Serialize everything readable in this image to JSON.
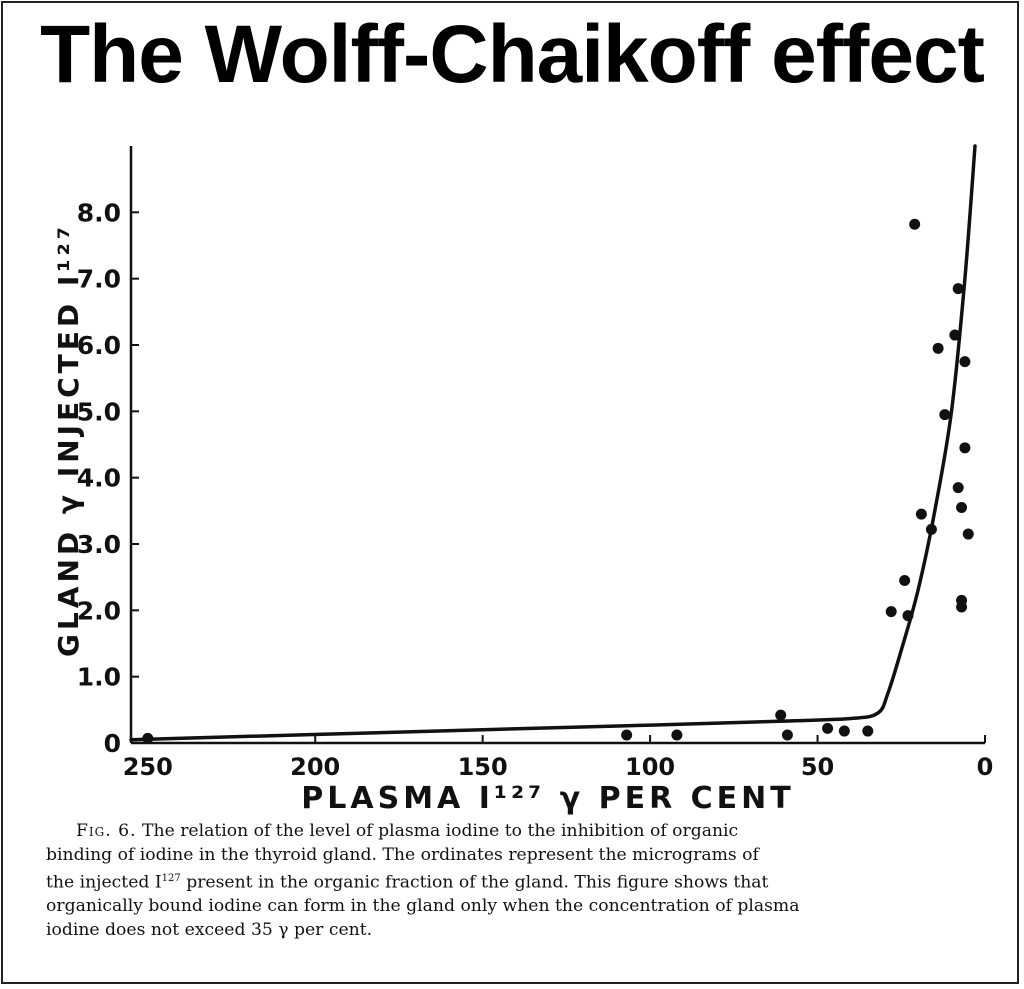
{
  "title": "The Wolff-Chaikoff effect",
  "chart_data": {
    "type": "scatter",
    "xlabel": "PLASMA I¹²⁷ γ PER CENT",
    "ylabel": "GLAND γ INJECTED I¹²⁷",
    "xlim": [
      255,
      0
    ],
    "x_reversed": true,
    "ylim": [
      0,
      9.0
    ],
    "x_ticks": [
      250,
      200,
      150,
      100,
      50,
      0
    ],
    "x_tick_labels": [
      "250",
      "200",
      "150",
      "100",
      "50",
      "0"
    ],
    "y_ticks": [
      0,
      1,
      2,
      3,
      4,
      5,
      6,
      7,
      8
    ],
    "y_tick_labels": [
      "0",
      "1.0",
      "2.0",
      "3.0",
      "4.0",
      "5.0",
      "6.0",
      "7.0",
      "8.0"
    ],
    "points": [
      {
        "x": 250,
        "y": 0.07
      },
      {
        "x": 107,
        "y": 0.12
      },
      {
        "x": 92,
        "y": 0.12
      },
      {
        "x": 61,
        "y": 0.42
      },
      {
        "x": 59,
        "y": 0.12
      },
      {
        "x": 47,
        "y": 0.22
      },
      {
        "x": 42,
        "y": 0.18
      },
      {
        "x": 35,
        "y": 0.18
      },
      {
        "x": 28,
        "y": 1.98
      },
      {
        "x": 24,
        "y": 2.45
      },
      {
        "x": 23,
        "y": 1.92
      },
      {
        "x": 21,
        "y": 7.82
      },
      {
        "x": 19,
        "y": 3.45
      },
      {
        "x": 16,
        "y": 3.22
      },
      {
        "x": 14,
        "y": 5.95
      },
      {
        "x": 12,
        "y": 4.95
      },
      {
        "x": 9,
        "y": 6.15
      },
      {
        "x": 8,
        "y": 6.85
      },
      {
        "x": 8,
        "y": 3.85
      },
      {
        "x": 7,
        "y": 3.55
      },
      {
        "x": 7,
        "y": 2.15
      },
      {
        "x": 7,
        "y": 2.05
      },
      {
        "x": 6,
        "y": 5.75
      },
      {
        "x": 6,
        "y": 4.45
      },
      {
        "x": 5,
        "y": 3.15
      }
    ],
    "fit_curve": [
      {
        "x": 255,
        "y": 0.05
      },
      {
        "x": 150,
        "y": 0.2
      },
      {
        "x": 100,
        "y": 0.27
      },
      {
        "x": 60,
        "y": 0.33
      },
      {
        "x": 40,
        "y": 0.37
      },
      {
        "x": 32,
        "y": 0.45
      },
      {
        "x": 29,
        "y": 0.75
      },
      {
        "x": 25,
        "y": 1.4
      },
      {
        "x": 20,
        "y": 2.3
      },
      {
        "x": 15,
        "y": 3.5
      },
      {
        "x": 10,
        "y": 5.0
      },
      {
        "x": 6,
        "y": 7.0
      },
      {
        "x": 3,
        "y": 9.0
      }
    ]
  },
  "caption": {
    "fig_label": "Fig. 6.",
    "line1": "The relation of the level of plasma iodine to the inhibition of organic",
    "line2": "binding of iodine in the thyroid gland.  The ordinates represent the micrograms of",
    "line3a": "the injected I",
    "line3sup": "127",
    "line3b": " present in the organic fraction of the gland.  This figure shows that",
    "line4": "organically bound iodine can form in the gland only when the concentration of plasma",
    "line5": "iodine does not exceed 35 γ per cent."
  }
}
